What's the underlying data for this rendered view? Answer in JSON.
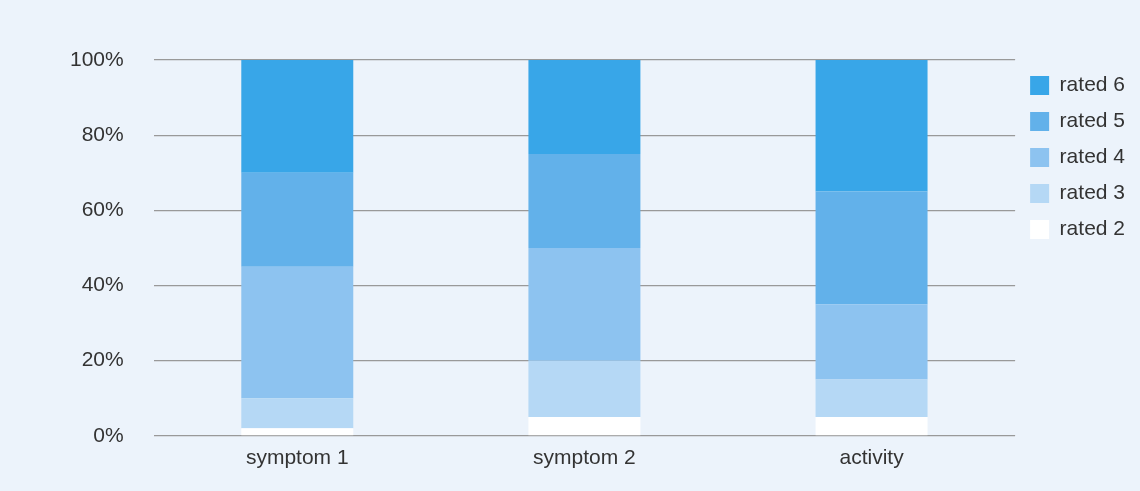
{
  "chart_data": {
    "type": "bar",
    "stacked": true,
    "categories": [
      "symptom 1",
      "symptom 2",
      "activity"
    ],
    "series": [
      {
        "name": "rated 2",
        "color": "#ffffff",
        "values": [
          2,
          5,
          5
        ]
      },
      {
        "name": "rated 3",
        "color": "#b5d8f5",
        "values": [
          8,
          15,
          10
        ]
      },
      {
        "name": "rated 4",
        "color": "#8dc3f0",
        "values": [
          35,
          30,
          20
        ]
      },
      {
        "name": "rated 5",
        "color": "#62b1ea",
        "values": [
          25,
          25,
          30
        ]
      },
      {
        "name": "rated 6",
        "color": "#38a6e8",
        "values": [
          30,
          25,
          35
        ]
      }
    ],
    "ylim": [
      0,
      100
    ],
    "yticks": [
      {
        "value": 0,
        "label": "0%"
      },
      {
        "value": 20,
        "label": "20%"
      },
      {
        "value": 40,
        "label": "40%"
      },
      {
        "value": 60,
        "label": "60%"
      },
      {
        "value": 80,
        "label": "80%"
      },
      {
        "value": 100,
        "label": "100%"
      }
    ],
    "grid": "y",
    "legend": "right"
  }
}
